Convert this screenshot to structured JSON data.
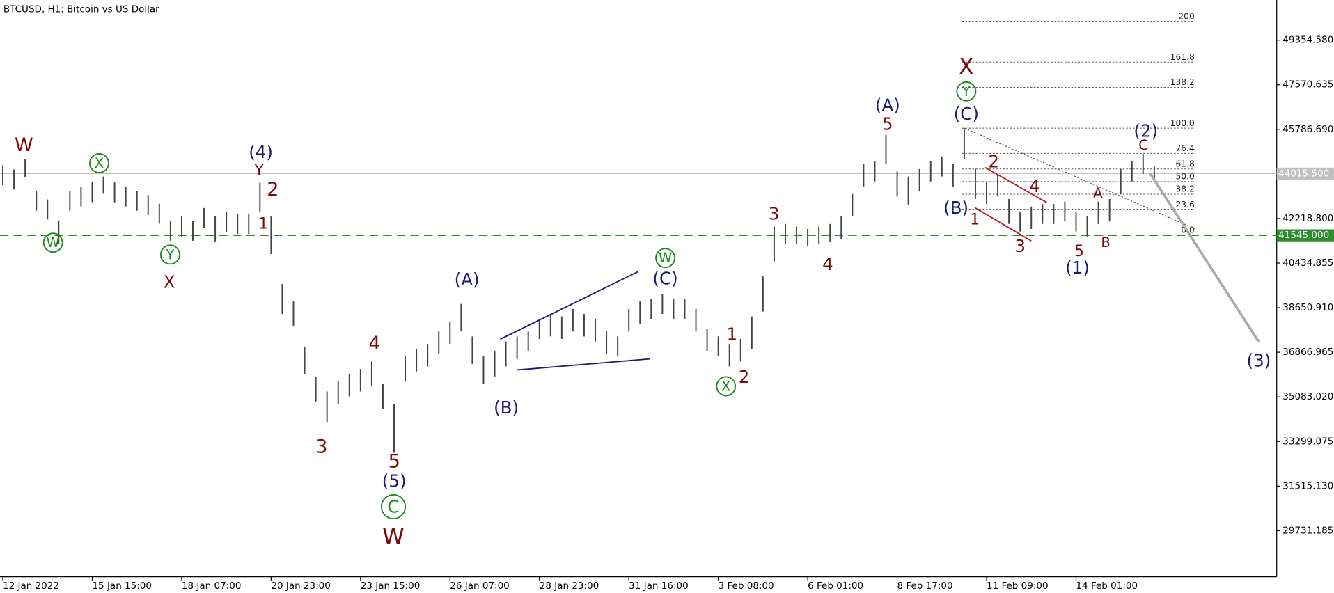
{
  "chart_data": {
    "type": "ohlc",
    "title": "BTCUSD, H1:  Bitcoin vs US Dollar",
    "color": "#444444",
    "x": [
      0,
      8,
      16,
      24,
      32,
      40,
      48,
      56,
      64,
      72,
      80,
      88,
      96,
      104,
      112,
      120,
      128,
      136,
      144,
      152,
      160,
      168,
      176,
      184,
      192,
      200,
      208,
      216,
      224,
      232,
      240,
      248,
      256,
      264,
      272,
      280,
      288,
      296,
      304,
      312,
      320,
      328,
      336,
      344,
      352,
      360,
      368,
      376,
      384,
      392,
      400,
      408,
      416,
      424,
      432,
      440,
      448,
      456,
      464,
      472,
      480,
      488,
      496,
      504,
      512,
      520,
      528,
      536,
      544,
      552,
      560,
      568,
      576,
      584,
      592,
      600,
      608,
      616,
      624,
      632,
      640,
      648,
      656,
      664,
      672,
      680,
      688,
      696,
      704,
      712,
      720,
      728,
      736,
      744,
      752,
      760,
      768,
      776,
      784,
      792,
      800,
      808,
      816,
      824
    ],
    "high": [
      44350,
      44180,
      44600,
      43330,
      42980,
      42130,
      43330,
      43500,
      43670,
      43900,
      43670,
      43500,
      43330,
      43160,
      42810,
      42130,
      42300,
      42130,
      42640,
      42300,
      42470,
      42400,
      42400,
      43650,
      42300,
      39600,
      38900,
      37100,
      35900,
      35300,
      35700,
      36000,
      36200,
      36500,
      35600,
      34800,
      36700,
      37000,
      37200,
      37700,
      38100,
      38800,
      37500,
      36700,
      36900,
      37300,
      37500,
      37700,
      38200,
      38400,
      38300,
      38600,
      38400,
      38200,
      37700,
      37500,
      38600,
      38900,
      39000,
      39200,
      39000,
      39000,
      38600,
      37800,
      37500,
      37200,
      37400,
      38300,
      39900,
      41900,
      42000,
      41900,
      41800,
      41900,
      42000,
      42300,
      43200,
      44400,
      44500,
      45560,
      44100,
      43900,
      44200,
      44500,
      44700,
      44400,
      45830,
      44200,
      43700,
      44000,
      43000,
      42500,
      42700,
      42800,
      42800,
      42900,
      42500,
      42300,
      42900,
      43000,
      44200,
      44500,
      44800,
      44300
    ],
    "low": [
      43550,
      43380,
      43890,
      42530,
      42180,
      41200,
      42530,
      42700,
      42870,
      43210,
      42870,
      42700,
      42530,
      42360,
      42010,
      41330,
      41500,
      41330,
      41840,
      41300,
      41670,
      41600,
      41600,
      42500,
      40800,
      38400,
      37900,
      36000,
      34900,
      34050,
      34800,
      35100,
      35300,
      35500,
      34600,
      32850,
      35700,
      36100,
      36300,
      36800,
      37200,
      37700,
      36400,
      35600,
      35900,
      36300,
      36600,
      36900,
      37400,
      37500,
      37400,
      37700,
      37500,
      37300,
      36800,
      36700,
      37700,
      38000,
      38200,
      38400,
      38200,
      38200,
      37700,
      36900,
      36700,
      36300,
      36500,
      37000,
      38500,
      40500,
      41200,
      41200,
      41100,
      41200,
      41300,
      41400,
      42300,
      43500,
      43700,
      44400,
      43100,
      42750,
      43300,
      43700,
      43900,
      43500,
      44600,
      43000,
      42800,
      43100,
      42000,
      41700,
      41800,
      42000,
      42000,
      42100,
      41700,
      41500,
      42000,
      42100,
      43200,
      43700,
      44000,
      43700
    ],
    "xlim": [
      -2,
      911
    ],
    "xticks": [
      {
        "value": 0,
        "label": "12 Jan 2022"
      },
      {
        "value": 64,
        "label": "15 Jan 15:00"
      },
      {
        "value": 128,
        "label": "18 Jan 07:00"
      },
      {
        "value": 192,
        "label": "20 Jan 23:00"
      },
      {
        "value": 256,
        "label": "23 Jan 15:00"
      },
      {
        "value": 320,
        "label": "26 Jan 07:00"
      },
      {
        "value": 384,
        "label": "28 Jan 23:00"
      },
      {
        "value": 448,
        "label": "31 Jan 16:00"
      },
      {
        "value": 512,
        "label": "3 Feb 08:00"
      },
      {
        "value": 576,
        "label": "6 Feb 01:00"
      },
      {
        "value": 640,
        "label": "8 Feb 17:00"
      },
      {
        "value": 704,
        "label": "11 Feb 09:00"
      },
      {
        "value": 768,
        "label": "14 Feb 01:00"
      }
    ],
    "ylim": [
      27885,
      50961
    ],
    "yticks": [
      {
        "value": 49354.58,
        "label": "49354.580"
      },
      47570.635,
      {
        "value": 45786.69,
        "label": "45786.690"
      },
      {
        "value": 42218.8,
        "label": "42218.800"
      },
      40434.855,
      {
        "value": 38650.91,
        "label": "38650.910"
      },
      36866.965,
      {
        "value": 35083.02,
        "label": "35083.020"
      },
      33299.075,
      {
        "value": 31515.13,
        "label": "31515.130"
      },
      29731.185
    ],
    "current_price": {
      "value": 44015.5,
      "label": "44015.500"
    },
    "level": {
      "value": 41545,
      "label": "41545.000"
    },
    "fibonacci": {
      "from": 41559,
      "to": 45833,
      "levels": [
        200,
        161.8,
        138.2,
        {
          "value": 100,
          "label": "100.0"
        },
        76.4,
        61.8,
        {
          "value": 50,
          "label": "50.0"
        },
        38.2,
        23.6,
        {
          "value": 0,
          "label": "0.0"
        }
      ]
    },
    "annotations": [
      "W",
      "X",
      "Y",
      "2",
      "1",
      "4",
      "3",
      "5",
      "W",
      "3",
      "4",
      "1",
      "2",
      "5",
      "X",
      "2",
      "4",
      "1",
      "3",
      "5",
      "A",
      "B",
      "C",
      "(4)",
      "(5)",
      "(A)",
      "(B)",
      "(C)",
      "(A)",
      "(C)",
      "(B)",
      "(2)",
      "(1)",
      "(3)",
      "X",
      "W",
      "Y",
      "C",
      "W",
      "X",
      "Y"
    ]
  }
}
